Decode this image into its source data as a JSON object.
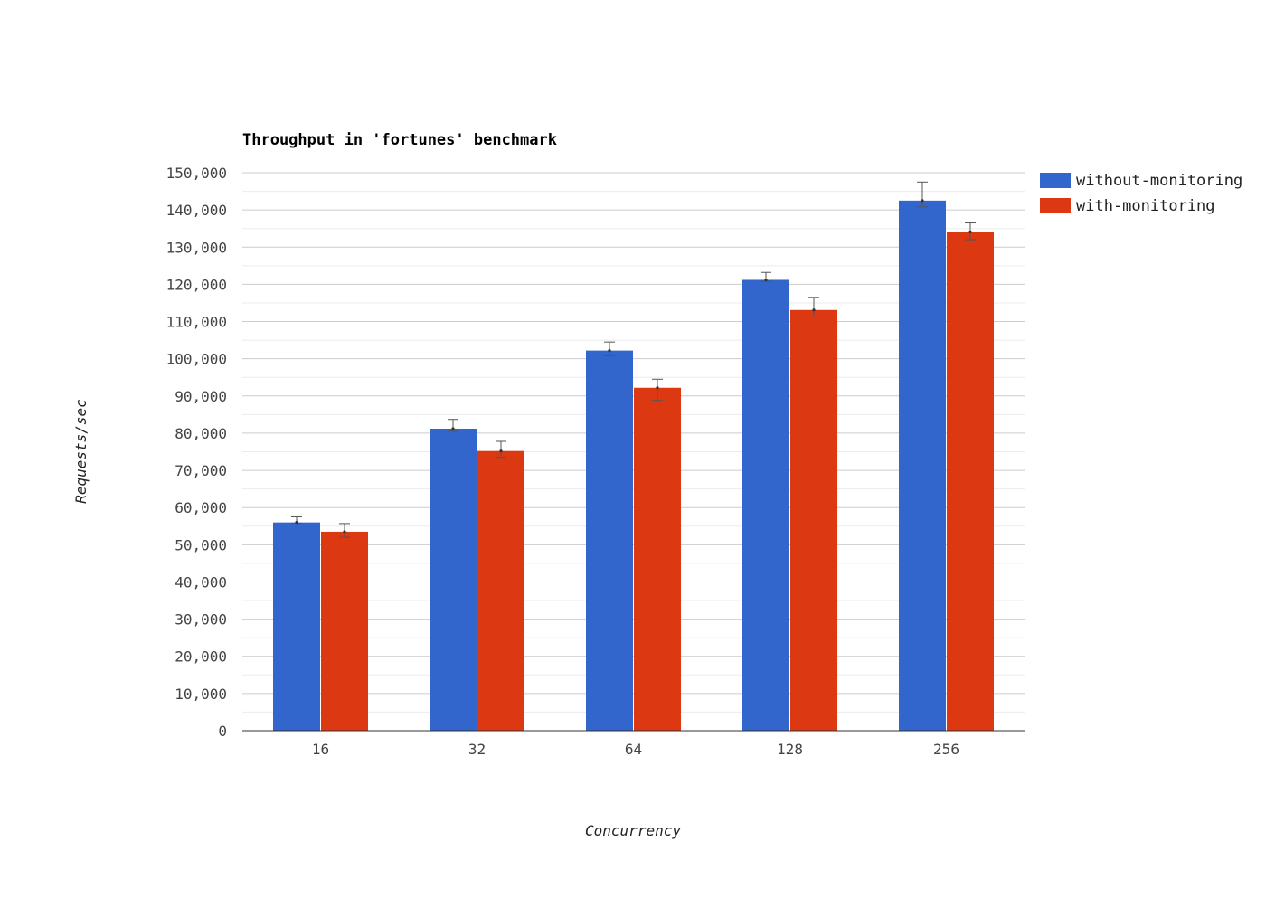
{
  "chart_data": {
    "type": "bar",
    "title": "Throughput in 'fortunes' benchmark",
    "xlabel": "Concurrency",
    "ylabel": "Requests/sec",
    "categories": [
      "16",
      "32",
      "64",
      "128",
      "256"
    ],
    "ylim": [
      0,
      150000
    ],
    "yticks": [
      0,
      10000,
      20000,
      30000,
      40000,
      50000,
      60000,
      70000,
      80000,
      90000,
      100000,
      110000,
      120000,
      130000,
      140000,
      150000
    ],
    "ytick_labels": [
      "0",
      "10,000",
      "20,000",
      "30,000",
      "40,000",
      "50,000",
      "60,000",
      "70,000",
      "80,000",
      "90,000",
      "100,000",
      "110,000",
      "120,000",
      "130,000",
      "140,000",
      "150,000"
    ],
    "grid": true,
    "legend_position": "right",
    "series": [
      {
        "name": "without-monitoring",
        "color": "#3366cc",
        "values": [
          56000,
          81200,
          102200,
          121200,
          142500
        ],
        "error_low": [
          55800,
          80500,
          100800,
          120800,
          140800
        ],
        "error_high": [
          57500,
          83700,
          104500,
          123200,
          147500
        ]
      },
      {
        "name": "with-monitoring",
        "color": "#dc3912",
        "values": [
          53500,
          75200,
          92200,
          113100,
          134100
        ],
        "error_low": [
          52000,
          73500,
          88800,
          111200,
          132000
        ],
        "error_high": [
          55700,
          77800,
          94500,
          116500,
          136500
        ]
      }
    ]
  }
}
